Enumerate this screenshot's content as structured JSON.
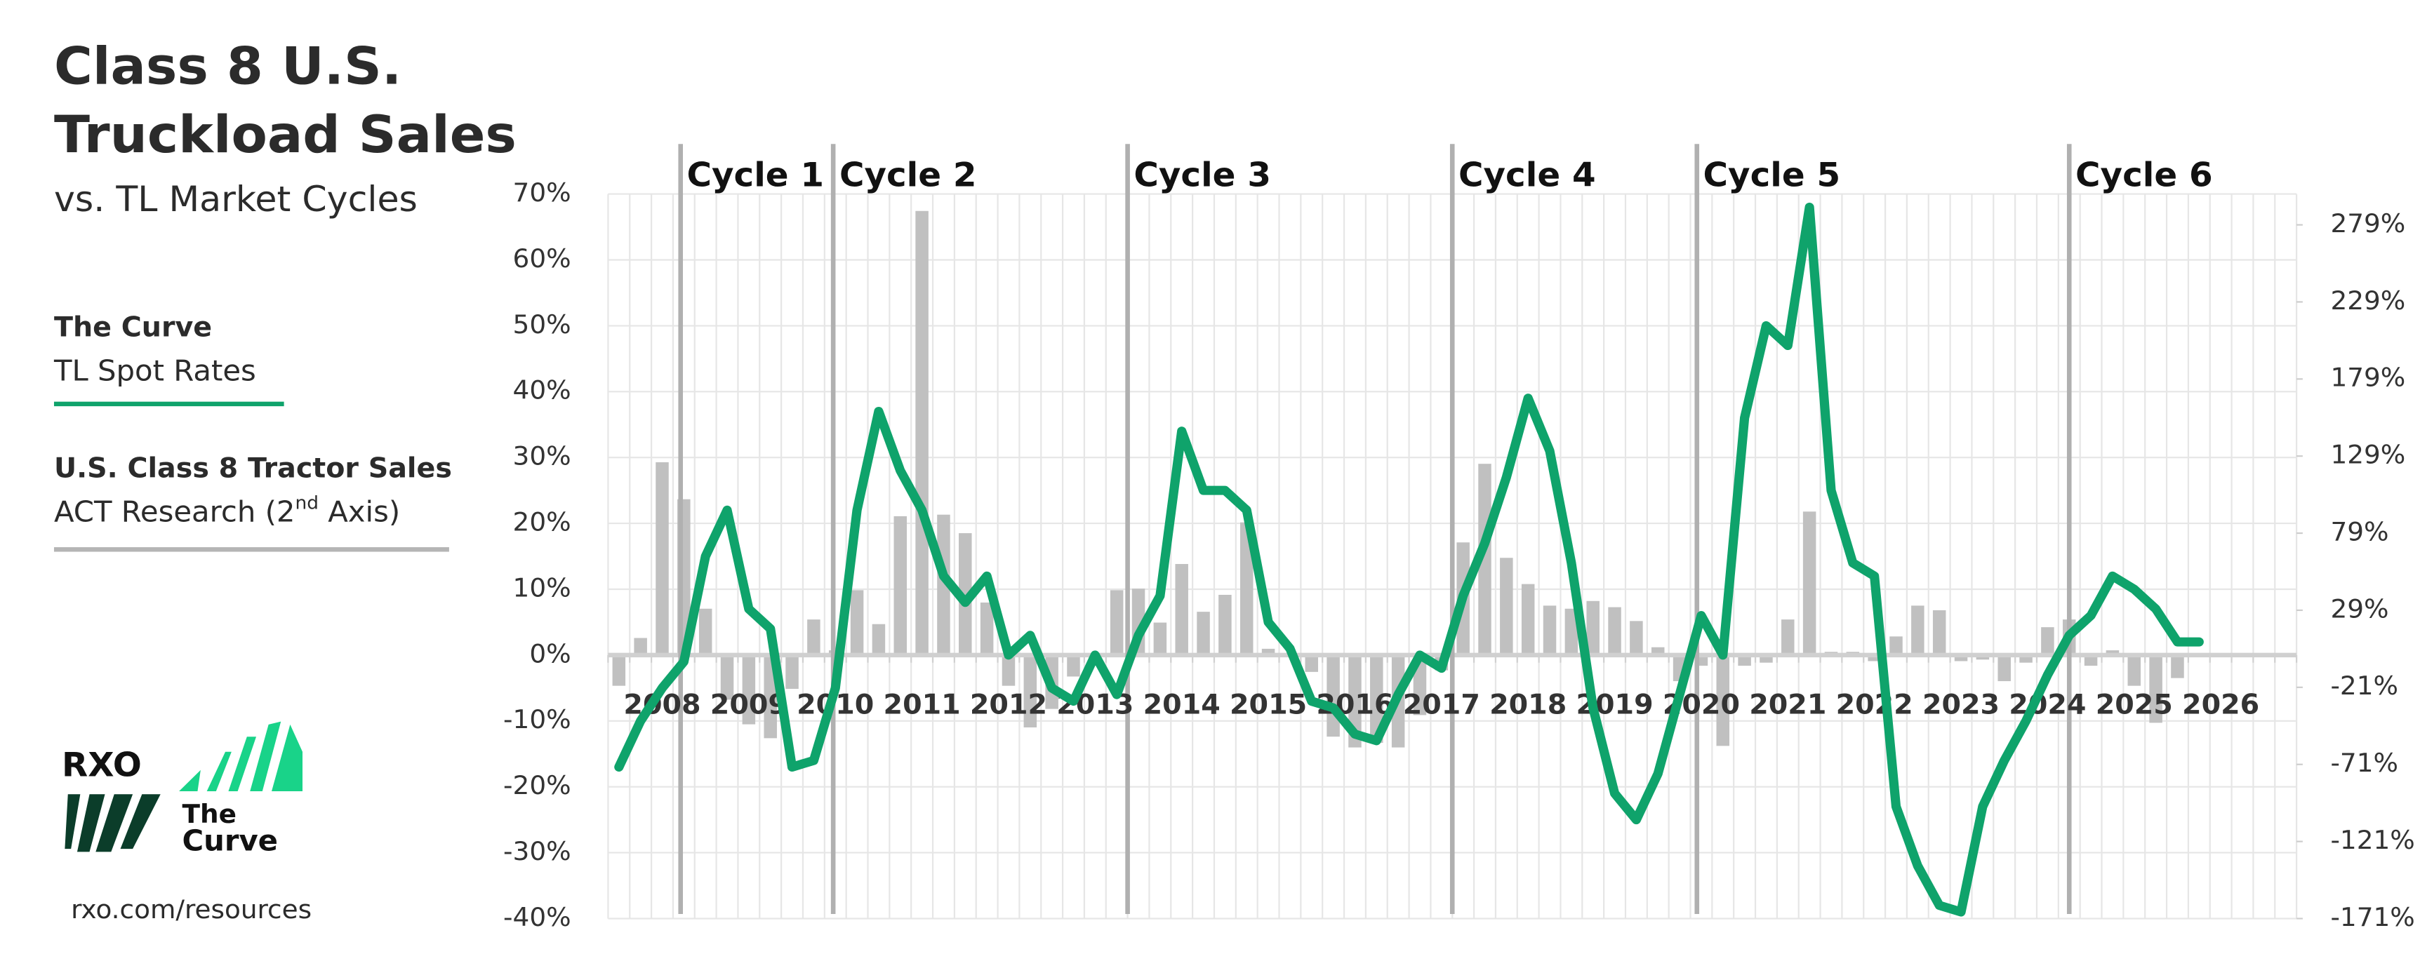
{
  "chart_data": {
    "type": "combo",
    "title": [
      "Class 8 U.S.",
      "Truckload Sales"
    ],
    "subtitle": "vs. TL Market Cycles",
    "categories": [
      null,
      null,
      "2008",
      null,
      null,
      null,
      "2009",
      null,
      null,
      null,
      "2010",
      null,
      null,
      null,
      "2011",
      null,
      null,
      null,
      "2012",
      null,
      null,
      null,
      "2013",
      null,
      null,
      null,
      "2014",
      null,
      null,
      null,
      "2015",
      null,
      null,
      null,
      "2016",
      null,
      null,
      null,
      "2017",
      null,
      null,
      null,
      "2018",
      null,
      null,
      null,
      "2019",
      null,
      null,
      null,
      "2020",
      null,
      null,
      null,
      "2021",
      null,
      null,
      null,
      "2022",
      null,
      null,
      null,
      "2023",
      null,
      null,
      null,
      "2024",
      null,
      null,
      null,
      "2025",
      null,
      null,
      null,
      "2026",
      null,
      null,
      null
    ],
    "series": [
      {
        "name": "The Curve",
        "source": [
          "TL Spot Rates"
        ],
        "type": "line",
        "color": "#0fa36b",
        "values": [
          -17,
          -10,
          -5,
          -1,
          15,
          22,
          7,
          4,
          -17,
          -16,
          -5,
          22,
          37,
          28,
          22,
          12,
          8,
          12,
          0,
          3,
          -5,
          -7,
          0,
          -6,
          3,
          9,
          34,
          25,
          25,
          22,
          5,
          1,
          -7,
          -8,
          -12,
          -13,
          -6,
          0,
          -2,
          9,
          17,
          27,
          39,
          31,
          14,
          -8,
          -21,
          -25,
          -18,
          -6,
          6,
          0,
          36,
          50,
          47,
          68,
          25,
          14,
          12,
          -23,
          -32,
          -38,
          -39,
          -23,
          -16,
          -10,
          -3,
          3,
          6,
          12,
          10,
          7,
          2,
          2,
          null,
          null,
          null,
          null
        ]
      },
      {
        "name": "U.S. Class 8 Tractor Sales",
        "source": [
          "ACT Research (2",
          "nd",
          " Axis)"
        ],
        "type": "bar",
        "axis": "y2",
        "color": "#c0c0c0",
        "values": [
          -20,
          11,
          125,
          101,
          30,
          -29,
          -45,
          -54,
          -22,
          23,
          3,
          42,
          20,
          90,
          288,
          91,
          79,
          34,
          -20,
          -47,
          -35,
          -14,
          -7,
          42,
          43,
          21,
          59,
          28,
          39,
          86,
          4,
          -1,
          -11,
          -53,
          -60,
          -57,
          -60,
          -39,
          -10,
          73,
          124,
          63,
          46,
          32,
          30,
          35,
          31,
          22,
          5,
          -17,
          -7,
          -59,
          -7,
          -5,
          23,
          93,
          2,
          2,
          -4,
          12,
          32,
          29,
          -4,
          -3,
          -17,
          -5,
          18,
          23,
          -7,
          3,
          -20,
          -44,
          -15,
          null,
          null,
          null,
          null,
          null
        ]
      }
    ],
    "ylim": [
      -40,
      70
    ],
    "yticks": [
      {
        "value": -40,
        "label": "-40%"
      },
      {
        "value": -30,
        "label": "-30%"
      },
      {
        "value": -20,
        "label": "-20%"
      },
      {
        "value": -10,
        "label": "-10%"
      },
      {
        "value": 0,
        "label": "0%"
      },
      {
        "value": 10,
        "label": "10%"
      },
      {
        "value": 20,
        "label": "20%"
      },
      {
        "value": 30,
        "label": "30%"
      },
      {
        "value": 40,
        "label": "40%"
      },
      {
        "value": 50,
        "label": "50%"
      },
      {
        "value": 60,
        "label": "60%"
      },
      {
        "value": 70,
        "label": "70%"
      }
    ],
    "y2lim": [
      -171,
      299
    ],
    "y2ticks": [
      {
        "value": -171,
        "label": "-171%"
      },
      {
        "value": -121,
        "label": "-121%"
      },
      {
        "value": -71,
        "label": "-71%"
      },
      {
        "value": -21,
        "label": "-21%"
      },
      {
        "value": 29,
        "label": "29%"
      },
      {
        "value": 79,
        "label": "79%"
      },
      {
        "value": 129,
        "label": "129%"
      },
      {
        "value": 179,
        "label": "179%"
      },
      {
        "value": 229,
        "label": "229%"
      },
      {
        "value": 279,
        "label": "279%"
      }
    ],
    "grid": true,
    "cycles": [
      {
        "label": "Cycle 1",
        "x": 3.35
      },
      {
        "label": "Cycle 2",
        "x": 10.4
      },
      {
        "label": "Cycle 3",
        "x": 24.0
      },
      {
        "label": "Cycle 4",
        "x": 39.0
      },
      {
        "label": "Cycle 5",
        "x": 50.3
      },
      {
        "label": "Cycle 6",
        "x": 67.5
      }
    ]
  },
  "branding": {
    "logo": "RXO",
    "product": [
      "The",
      "Curve"
    ],
    "url": "rxo.com/resources"
  }
}
